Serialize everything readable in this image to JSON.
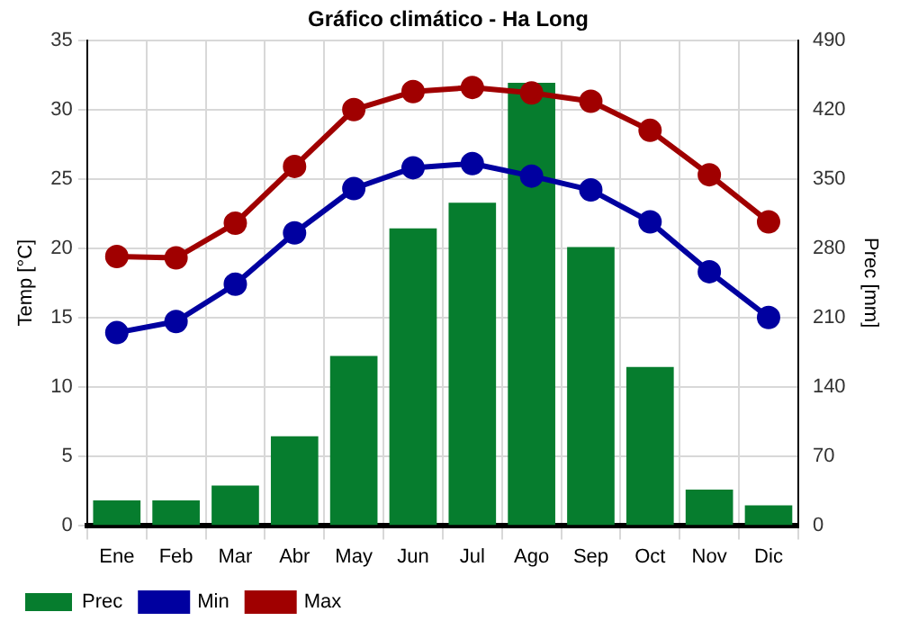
{
  "chart_data": {
    "type": "bar",
    "title": "Gráfico climático - Ha Long",
    "ylabel": "Temp [°C]",
    "y2label": "Prec [mm]",
    "categories": [
      "Ene",
      "Feb",
      "Mar",
      "Abr",
      "May",
      "Jun",
      "Jul",
      "Ago",
      "Sep",
      "Oct",
      "Nov",
      "Dic"
    ],
    "series": [
      {
        "name": "Prec",
        "axis": "y2",
        "color": "#067d2e",
        "values": [
          25,
          25,
          40,
          90,
          171,
          300,
          326,
          447,
          281,
          160,
          36,
          20
        ]
      },
      {
        "name": "Min",
        "type": "line",
        "color": "#0000a0",
        "values": [
          13.9,
          14.7,
          17.4,
          21.1,
          24.3,
          25.8,
          26.1,
          25.2,
          24.2,
          21.9,
          18.3,
          15.0
        ]
      },
      {
        "name": "Max",
        "type": "line",
        "color": "#a00000",
        "values": [
          19.4,
          19.3,
          21.8,
          25.9,
          30.0,
          31.3,
          31.6,
          31.2,
          30.6,
          28.5,
          25.3,
          21.9
        ]
      }
    ],
    "ylim": [
      0,
      35
    ],
    "yticks": [
      0,
      5,
      10,
      15,
      20,
      25,
      30,
      35
    ],
    "y2lim": [
      0,
      490
    ],
    "y2ticks": [
      0,
      70,
      140,
      210,
      280,
      350,
      420,
      490
    ],
    "grid": true,
    "legend": "bottom",
    "marker": "circle",
    "line_style": "solid"
  }
}
